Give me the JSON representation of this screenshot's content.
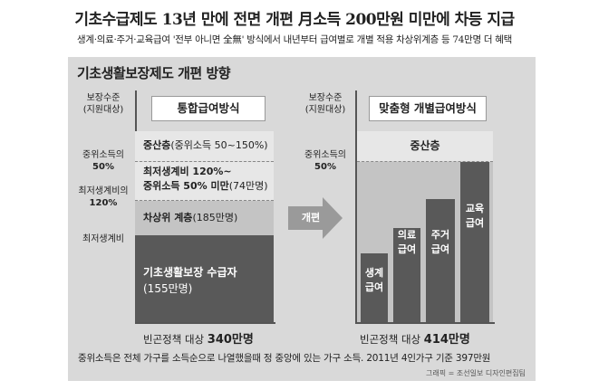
{
  "headline": "기초수급제도 13년 만에 전면 개편  月소득 200만원 미만에 차등 지급",
  "subline": "생계·의료·주거·교육급여 '전부 아니면 全無' 방식에서  내년부터 급여별로 개별 적용  차상위계층 등 74만명 더 혜택",
  "panel_title": "기초생활보장제도 개편 방향",
  "left": {
    "axis_title": [
      "보장수준",
      "(지원대상)"
    ],
    "axis_mid1": [
      "중위소득의",
      "50%"
    ],
    "axis_mid2": [
      "최저생계비의",
      "120%"
    ],
    "axis_low": "최저생계비",
    "box_title": "통합급여방식",
    "seg1_bold": "중산층",
    "seg1_thin": "(중위소득 50~150%)",
    "seg2_line1": "최저생계비 120%~",
    "seg2_line2_bold": "중위소득 50% 미만",
    "seg2_line2_thin": "(74만명)",
    "seg3_bold": "차상위 계층",
    "seg3_thin": "(185만명)",
    "seg4_line1": "기초생활보장 수급자",
    "seg4_line2": "(155만명)",
    "footer_label": "빈곤정책 대상",
    "footer_value": "340만명"
  },
  "arrow_label": "개편",
  "right": {
    "axis_title": [
      "보장수준",
      "(지원대상)"
    ],
    "axis_mid": [
      "중위소득의",
      "50%"
    ],
    "box_title": "맞춤형 개별급여방식",
    "top_label": "중산층",
    "bars": [
      {
        "line1": "생계",
        "line2": "급여"
      },
      {
        "line1": "의료",
        "line2": "급여"
      },
      {
        "line1": "주거",
        "line2": "급여"
      },
      {
        "line1": "교육",
        "line2": "급여"
      }
    ],
    "footer_label": "빈곤정책 대상",
    "footer_value": "414만명"
  },
  "note": "중위소득은 전체 가구를 소득순으로 나열했을때 정 중앙에 있는 가구 소득. 2011년 4인가구 기준 397만원",
  "credit": "그래픽 = 조선일보 디자인편집팀",
  "colors": {
    "panel_bg": "#d9d9d9",
    "light": "#e7e7e7",
    "mid": "#c4c4c4",
    "mid_dark": "#9e9e9e",
    "dark": "#595959"
  }
}
